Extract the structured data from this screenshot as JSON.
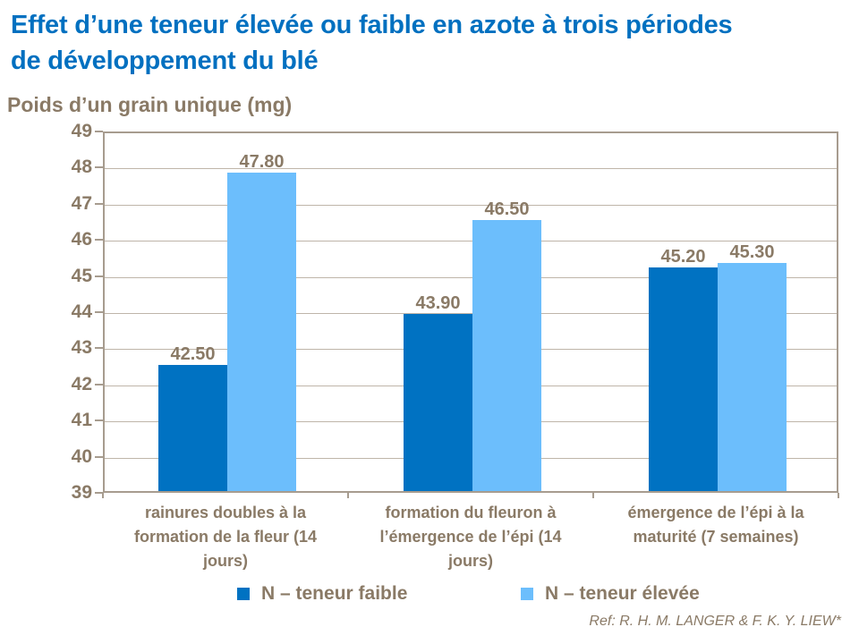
{
  "page": {
    "title_lines": [
      "Effet d’une teneur élevée ou faible en azote à trois périodes",
      "de développement du blé"
    ]
  },
  "colors": {
    "title_blue": "#0070C0",
    "text_brown": "#8A7A66",
    "gridline": "#BFB5A9",
    "plot_border": "#A79C8F",
    "series_dark_blue": "#0072C2",
    "series_light_blue": "#6CBEFC"
  },
  "footer": {
    "reference": "Ref: R. H. M. LANGER & F. K. Y. LIEW*"
  },
  "chart_data": {
    "type": "bar",
    "title": "Effet d’une teneur élevée ou faible en azote à trois périodes de développement du blé",
    "ylabel": "Poids d’un grain unique (mg)",
    "xlabel": "",
    "ylim": [
      39,
      49
    ],
    "ytick_step": 1,
    "ytick_labels": [
      "39",
      "40",
      "41",
      "42",
      "43",
      "44",
      "45",
      "46",
      "47",
      "48",
      "49"
    ],
    "grid": true,
    "legend_position": "bottom",
    "categories": [
      "rainures doubles à la formation de la fleur (14 jours)",
      "formation du fleuron à l’émergence de l’épi (14 jours)",
      "émergence de l’épi à la maturité (7 semaines)"
    ],
    "series": [
      {
        "name": "N – teneur faible",
        "color": "#0072C2",
        "values": [
          42.5,
          43.9,
          45.2
        ],
        "value_labels": [
          "42.50",
          "43.90",
          "45.20"
        ]
      },
      {
        "name": "N – teneur élevée",
        "color": "#6CBEFC",
        "values": [
          47.8,
          46.5,
          45.3
        ],
        "value_labels": [
          "47.80",
          "46.50",
          "45.30"
        ]
      }
    ]
  }
}
